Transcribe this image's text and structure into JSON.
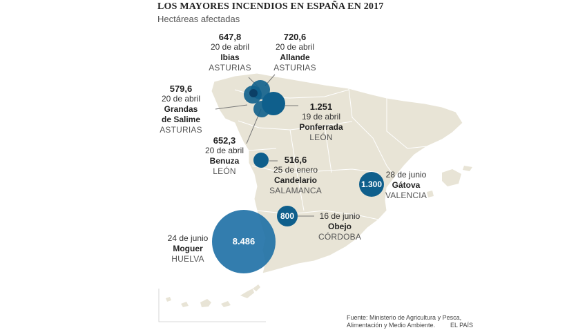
{
  "title": "LOS MAYORES INCENDIOS EN ESPAÑA EN 2017",
  "subtitle": "Hectáreas afectadas",
  "fires": [
    {
      "id": "ibias",
      "value": "647,8",
      "date": "20 de abril",
      "place": "Ibias",
      "province": "ASTURIAS"
    },
    {
      "id": "allande",
      "value": "720,6",
      "date": "20 de abril",
      "place": "Allande",
      "province": "ASTURIAS"
    },
    {
      "id": "grandas",
      "value": "579,6",
      "date": "20 de abril",
      "place_line1": "Grandas",
      "place_line2": "de Salime",
      "province": "ASTURIAS"
    },
    {
      "id": "ponferrada",
      "value": "1.251",
      "date": "19 de abril",
      "place": "Ponferrada",
      "province": "LEÓN"
    },
    {
      "id": "benuza",
      "value": "652,3",
      "date": "20 de abril",
      "place": "Benuza",
      "province": "LEÓN"
    },
    {
      "id": "candelario",
      "value": "516,6",
      "date": "25 de enero",
      "place": "Candelario",
      "province": "SALAMANCA"
    },
    {
      "id": "gatova",
      "value": "1.300",
      "date": "28 de junio",
      "place": "Gátova",
      "province": "VALENCIA"
    },
    {
      "id": "obejo",
      "value": "800",
      "date": "16 de junio",
      "place": "Obejo",
      "province": "CÓRDOBA"
    },
    {
      "id": "moguer",
      "value": "8.486",
      "date": "24 de junio",
      "place": "Moguer",
      "province": "HUELVA"
    }
  ],
  "colors": {
    "land": "#e8e4d6",
    "border": "#ffffff",
    "bubble": "#0f5f8c",
    "bubble_big": "#1d6fa5",
    "leader": "#777777"
  },
  "source_line1": "Fuente: Ministerio de Agricultura y Pesca,",
  "source_line2": "Alimentación y Medio Ambiente.",
  "credit": "EL PAÍS"
}
